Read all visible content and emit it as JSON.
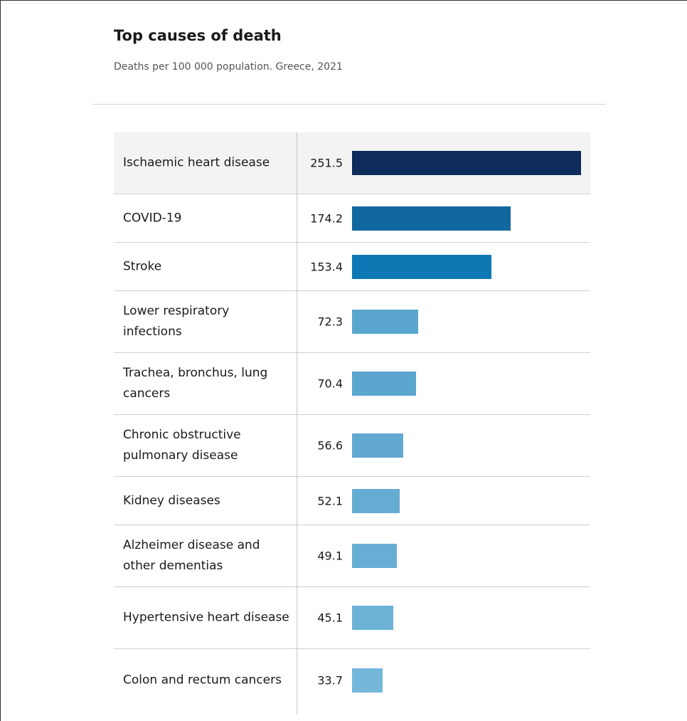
{
  "title": "Top causes of death",
  "subtitle": "Deaths per 100 000 population. Greece, 2021",
  "chart_data": {
    "type": "bar",
    "orientation": "horizontal",
    "title": "Top causes of death",
    "subtitle": "Deaths per 100 000 population. Greece, 2021",
    "categories": [
      "Ischaemic heart disease",
      "COVID-19",
      "Stroke",
      "Lower respiratory infections",
      "Trachea, bronchus, lung cancers",
      "Chronic obstructive pulmonary disease",
      "Kidney diseases",
      "Alzheimer disease and other dementias",
      "Hypertensive heart disease",
      "Colon and rectum cancers"
    ],
    "values": [
      251.5,
      174.2,
      153.4,
      72.3,
      70.4,
      56.6,
      52.1,
      49.1,
      45.1,
      33.7
    ],
    "value_labels": [
      "251.5",
      "174.2",
      "153.4",
      "72.3",
      "70.4",
      "56.6",
      "52.1",
      "49.1",
      "45.1",
      "33.7"
    ],
    "colors": [
      "#0d2c5b",
      "#10689e",
      "#0c79b4",
      "#5ba6cf",
      "#5ba6cf",
      "#62a9d1",
      "#65acd3",
      "#67aed4",
      "#6cb1d6",
      "#74b7da"
    ],
    "xlim": [
      0,
      251.5
    ],
    "grid": false,
    "legend": "none"
  }
}
